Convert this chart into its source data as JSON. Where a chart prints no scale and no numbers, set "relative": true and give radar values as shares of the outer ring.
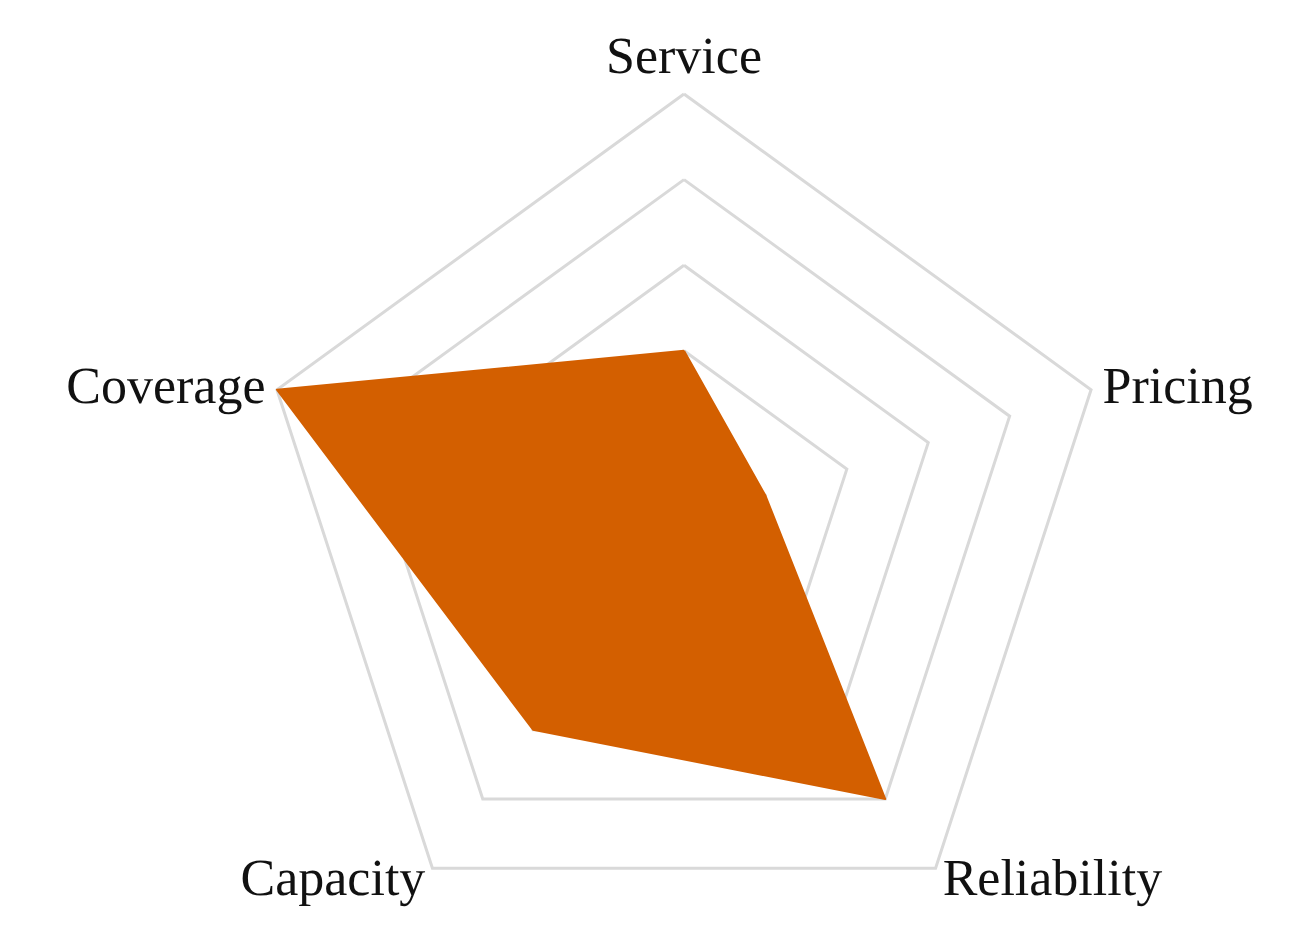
{
  "chart_data": {
    "type": "radar",
    "relative": true,
    "grid": true,
    "marker": "none",
    "categories": [
      "Service",
      "Pricing",
      "Reliability",
      "Capacity",
      "Coverage"
    ],
    "series": [
      {
        "color": "#d35f00",
        "values": [
          0.4,
          0.2,
          0.8,
          0.6,
          1.0
        ]
      }
    ]
  }
}
